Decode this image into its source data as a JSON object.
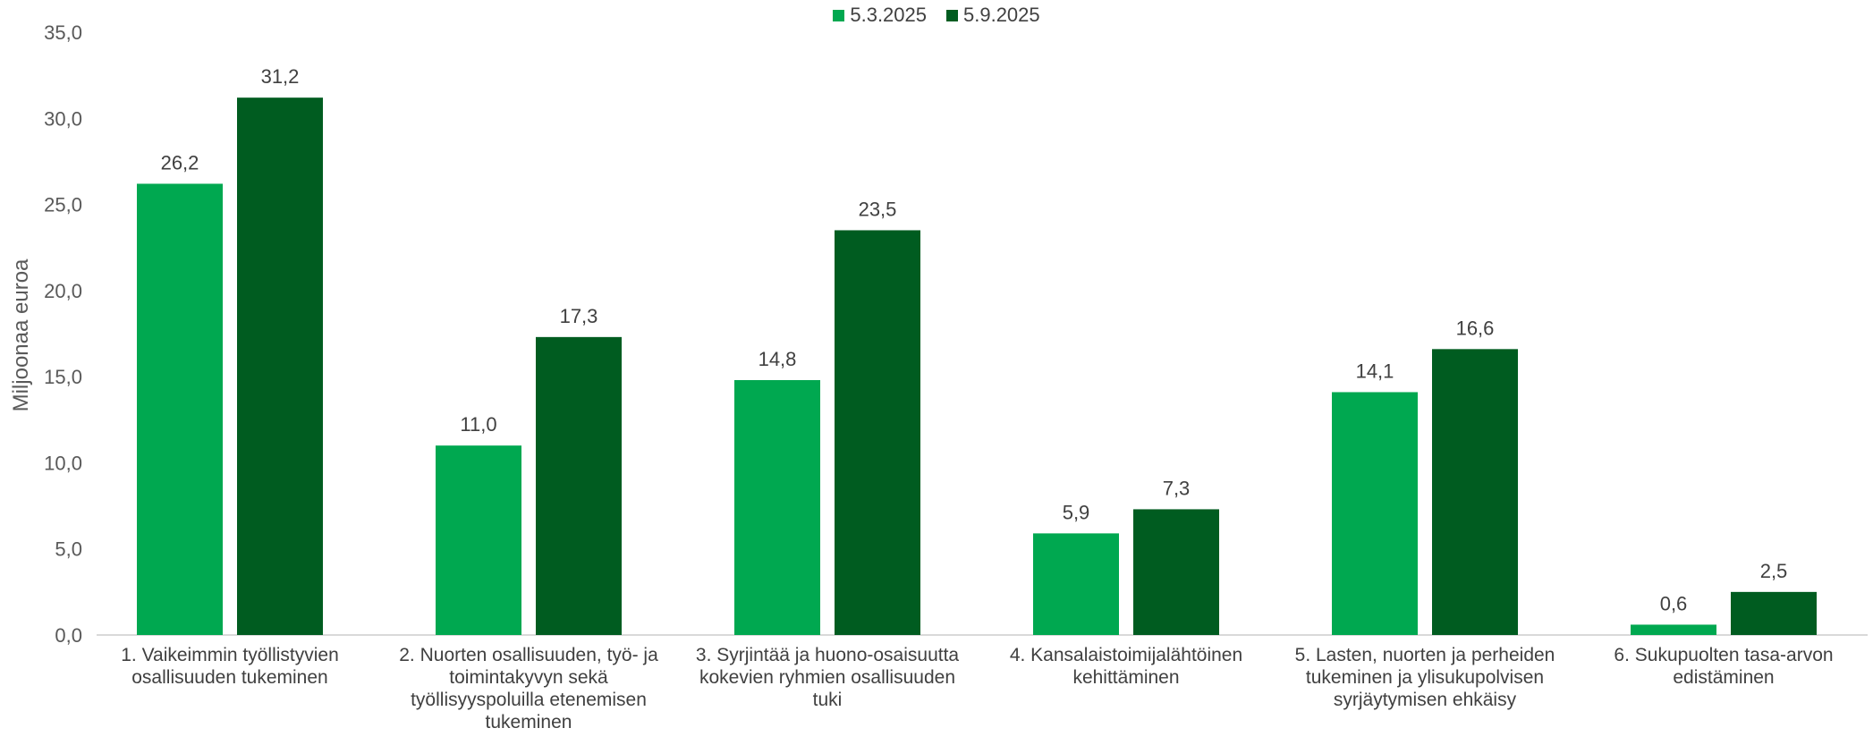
{
  "colors": {
    "series1": "#00A850",
    "series2": "#005C20",
    "axis": "#D9D9D9",
    "text": "#404040"
  },
  "chart_data": {
    "type": "bar",
    "ylabel": "Miljoonaa euroa",
    "ylim": [
      0,
      35
    ],
    "yticks": [
      "0,0",
      "5,0",
      "10,0",
      "15,0",
      "20,0",
      "25,0",
      "30,0",
      "35,0"
    ],
    "grid": false,
    "legend_position": "top-center",
    "categories": [
      "1. Vaikeimmin työllistyvien osallisuuden tukeminen",
      "2. Nuorten osallisuuden, työ- ja toimintakyvyn sekä työllisyyspoluilla etenemisen tukeminen",
      "3. Syrjintää ja huono-osaisuutta kokevien ryhmien osallisuuden tuki",
      "4. Kansalaistoimijalähtöinen kehittäminen",
      "5. Lasten, nuorten ja perheiden tukeminen ja ylisukupolvisen syrjäytymisen ehkäisy",
      "6. Sukupuolten tasa-arvon edistäminen"
    ],
    "series": [
      {
        "name": "5.3.2025",
        "values": [
          26.2,
          11.0,
          14.8,
          5.9,
          14.1,
          0.6
        ],
        "labels": [
          "26,2",
          "11,0",
          "14,8",
          "5,9",
          "14,1",
          "0,6"
        ]
      },
      {
        "name": "5.9.2025",
        "values": [
          31.2,
          17.3,
          23.5,
          7.3,
          16.6,
          2.5
        ],
        "labels": [
          "31,2",
          "17,3",
          "23,5",
          "7,3",
          "16,6",
          "2,5"
        ]
      }
    ]
  }
}
